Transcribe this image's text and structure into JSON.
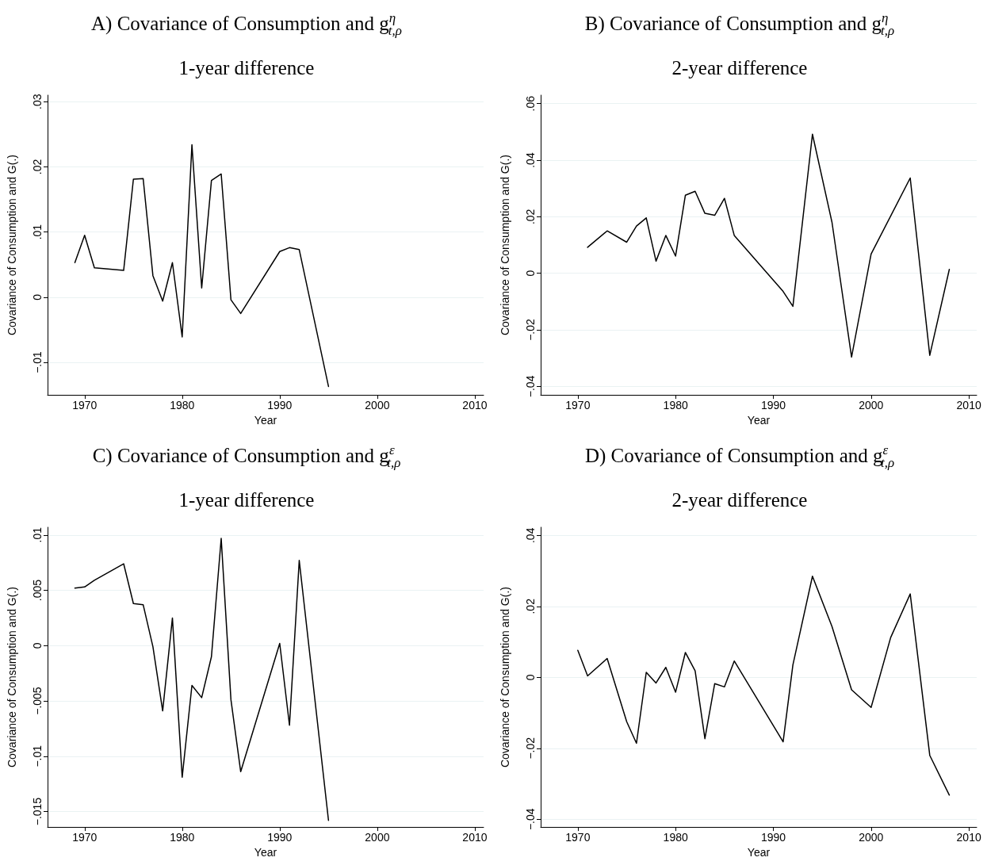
{
  "chart_data": [
    {
      "type": "line",
      "title": "A) Covariance of Consumption and g$^{η}$$_{t,ρ}$",
      "subtitle": "1-year difference",
      "xlabel": "Year",
      "ylabel": "Covariance of Consumption and G(.)",
      "grid": "y",
      "marker": "none",
      "line_style": "solid",
      "xlim": [
        1966.2,
        2010.9
      ],
      "xticks": [
        1970,
        1980,
        1990,
        2000,
        2010
      ],
      "ylim": [
        -0.015,
        0.031
      ],
      "yticks": [
        {
          "value": -0.01,
          "label": "−.01"
        },
        {
          "value": 0,
          "label": "0"
        },
        {
          "value": 0.01,
          "label": ".01"
        },
        {
          "value": 0.02,
          "label": ".02"
        },
        {
          "value": 0.03,
          "label": ".03"
        }
      ],
      "x": [
        1969,
        1970,
        1971,
        1974,
        1975,
        1976,
        1977,
        1978,
        1979,
        1980,
        1981,
        1982,
        1983,
        1984,
        1985,
        1986,
        1990,
        1991,
        1992,
        1995
      ],
      "series": [
        {
          "color": "#000000",
          "values": [
            0.0053,
            0.0095,
            0.0045,
            0.0041,
            0.0181,
            0.0182,
            0.0033,
            -0.0006,
            0.0053,
            -0.0061,
            0.0234,
            0.0014,
            0.0179,
            0.0189,
            -0.0004,
            -0.0025,
            0.007,
            0.0076,
            0.0073,
            -0.0137
          ]
        }
      ]
    },
    {
      "type": "line",
      "title": "B) Covariance of Consumption and g$^{η}$$_{t,ρ}$",
      "subtitle": "2-year difference",
      "xlabel": "Year",
      "ylabel": "Covariance of Consumption and G(.)",
      "grid": "y",
      "marker": "none",
      "line_style": "solid",
      "xlim": [
        1966.2,
        2010.8
      ],
      "xticks": [
        1970,
        1980,
        1990,
        2000,
        2010
      ],
      "ylim": [
        -0.043,
        0.063
      ],
      "yticks": [
        {
          "value": -0.04,
          "label": "−.04"
        },
        {
          "value": -0.02,
          "label": "−.02"
        },
        {
          "value": 0,
          "label": "0"
        },
        {
          "value": 0.02,
          "label": ".02"
        },
        {
          "value": 0.04,
          "label": ".04"
        },
        {
          "value": 0.06,
          "label": ".06"
        }
      ],
      "x": [
        1971,
        1973,
        1975,
        1976,
        1977,
        1978,
        1979,
        1980,
        1981,
        1982,
        1983,
        1984,
        1985,
        1986,
        1991,
        1992,
        1994,
        1996,
        1998,
        2000,
        2004,
        2006,
        2008
      ],
      "series": [
        {
          "color": "#000000",
          "values": [
            0.0092,
            0.015,
            0.011,
            0.0167,
            0.0196,
            0.0043,
            0.0134,
            0.0061,
            0.0276,
            0.029,
            0.0212,
            0.0205,
            0.0265,
            0.0134,
            -0.0064,
            -0.0117,
            0.0492,
            0.018,
            -0.0296,
            0.0068,
            0.0337,
            -0.029,
            0.0014
          ]
        }
      ]
    },
    {
      "type": "line",
      "title": "C) Covariance of Consumption and g$^{ε}$$_{t,ρ}$",
      "subtitle": "1-year difference",
      "xlabel": "Year",
      "ylabel": "Covariance of Consumption and G(.)",
      "grid": "y",
      "marker": "none",
      "line_style": "solid",
      "xlim": [
        1966.2,
        2010.9
      ],
      "xticks": [
        1970,
        1980,
        1990,
        2000,
        2010
      ],
      "ylim": [
        -0.0164,
        0.0107
      ],
      "yticks": [
        {
          "value": -0.015,
          "label": "−.015"
        },
        {
          "value": -0.01,
          "label": "−.01"
        },
        {
          "value": -0.005,
          "label": "−.005"
        },
        {
          "value": 0,
          "label": "0"
        },
        {
          "value": 0.005,
          "label": ".005"
        },
        {
          "value": 0.01,
          "label": ".01"
        }
      ],
      "x": [
        1969,
        1970,
        1971,
        1974,
        1975,
        1976,
        1977,
        1978,
        1979,
        1980,
        1981,
        1982,
        1983,
        1984,
        1985,
        1986,
        1990,
        1991,
        1992,
        1995
      ],
      "series": [
        {
          "color": "#000000",
          "values": [
            0.0052,
            0.0053,
            0.0059,
            0.0074,
            0.0038,
            0.0037,
            -0.0001,
            -0.0059,
            0.0025,
            -0.0119,
            -0.0036,
            -0.0047,
            -0.001,
            0.0097,
            -0.0049,
            -0.0114,
            0.0002,
            -0.0072,
            0.0077,
            -0.0158
          ]
        }
      ]
    },
    {
      "type": "line",
      "title": "D) Covariance of Consumption and g$^{ε}$$_{t,ρ}$",
      "subtitle": "2-year difference",
      "xlabel": "Year",
      "ylabel": "Covariance of Consumption and G(.)",
      "grid": "y",
      "marker": "none",
      "line_style": "solid",
      "xlim": [
        1966.2,
        2010.8
      ],
      "xticks": [
        1970,
        1980,
        1990,
        2000,
        2010
      ],
      "ylim": [
        -0.0422,
        0.0423
      ],
      "yticks": [
        {
          "value": -0.04,
          "label": "−.04"
        },
        {
          "value": -0.02,
          "label": "−.02"
        },
        {
          "value": 0,
          "label": "0"
        },
        {
          "value": 0.02,
          "label": ".02"
        },
        {
          "value": 0.04,
          "label": ".04"
        }
      ],
      "x": [
        1970,
        1971,
        1973,
        1975,
        1976,
        1977,
        1978,
        1979,
        1980,
        1981,
        1982,
        1983,
        1984,
        1985,
        1986,
        1991,
        1992,
        1994,
        1996,
        1998,
        2000,
        2002,
        2004,
        2006,
        2008
      ],
      "series": [
        {
          "color": "#000000",
          "values": [
            0.0076,
            0.0004,
            0.0053,
            -0.0125,
            -0.0186,
            0.0014,
            -0.0016,
            0.0028,
            -0.0042,
            0.007,
            0.0018,
            -0.0173,
            -0.0018,
            -0.0027,
            0.0046,
            -0.0182,
            0.0035,
            0.0285,
            0.0143,
            -0.0035,
            -0.0085,
            0.0112,
            0.0235,
            -0.022,
            -0.0332
          ]
        }
      ]
    }
  ]
}
